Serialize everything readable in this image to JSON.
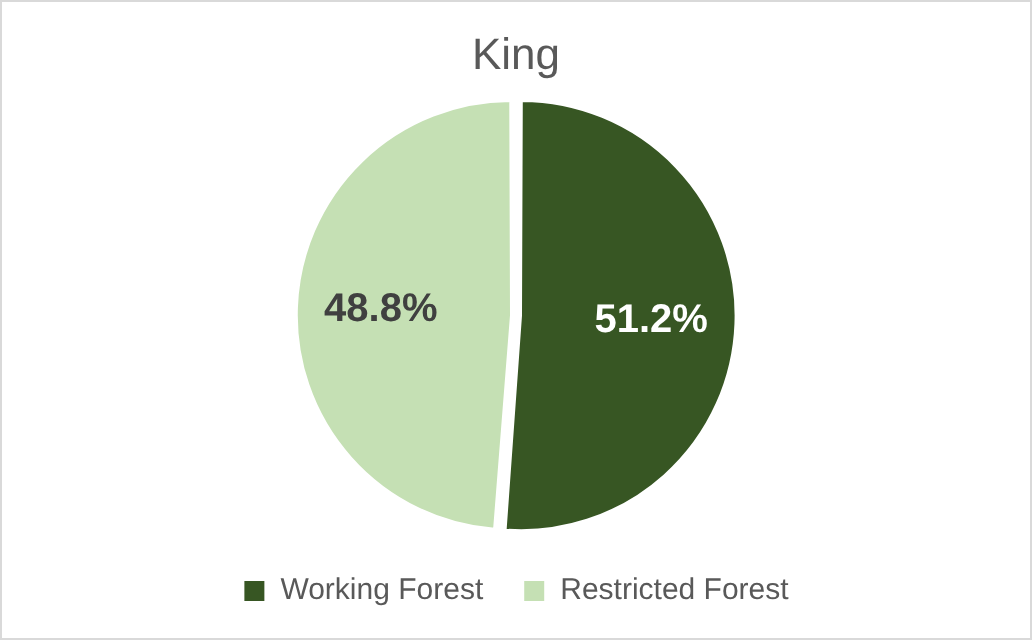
{
  "chart_data": {
    "type": "pie",
    "title": "King",
    "categories": [
      "Working Forest",
      "Restricted Forest"
    ],
    "values": [
      51.2,
      48.8
    ],
    "colors": [
      "#375623",
      "#c5e0b4"
    ],
    "value_labels": [
      "51.2%",
      "48.8%"
    ],
    "legend": "bottom"
  }
}
